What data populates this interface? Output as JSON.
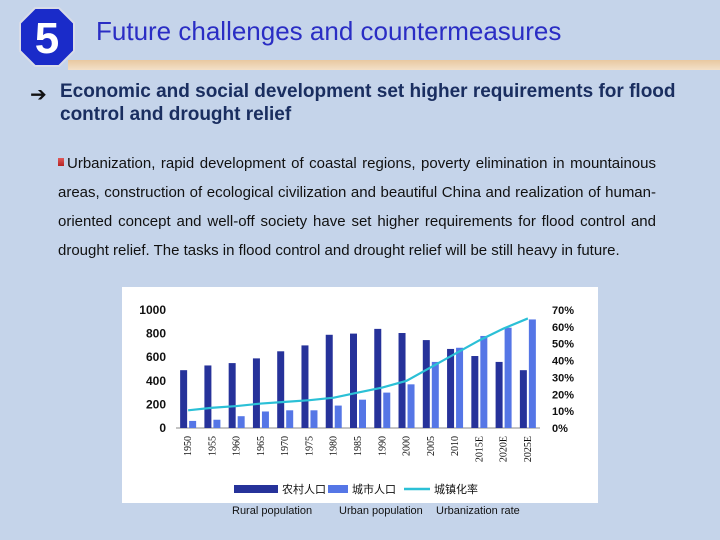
{
  "badge": {
    "number": "5"
  },
  "title": "Future challenges and countermeasures",
  "heading": "Economic and social development set higher requirements for flood control and drought relief",
  "paragraph": "Urbanization, rapid development of coastal regions, poverty elimination in mountainous areas, construction of ecological civilization and beautiful China and realization of human-oriented concept and well-off society have set higher requirements for flood control and drought relief. The tasks in flood control and drought relief will be still heavy in future.",
  "colors": {
    "rural": "#26329a",
    "urban": "#5576e6",
    "rate": "#2bc0d6",
    "title": "#2a2dc4",
    "badge": "#1a2bc9"
  },
  "below_labels": {
    "rural": "Rural population",
    "urban": "Urban population",
    "rate": "Urbanization rate"
  },
  "chart_data": {
    "type": "bar",
    "categories": [
      "1950",
      "1955",
      "1960",
      "1965",
      "1970",
      "1975",
      "1980",
      "1985",
      "1990",
      "2000",
      "2005",
      "2010",
      "2015E",
      "2020E",
      "2025E"
    ],
    "series": [
      {
        "name": "农村人口",
        "type": "bar",
        "axis": "left",
        "values": [
          490,
          530,
          550,
          590,
          650,
          700,
          790,
          800,
          840,
          805,
          745,
          670,
          610,
          560,
          490
        ]
      },
      {
        "name": "城市人口",
        "type": "bar",
        "axis": "left",
        "values": [
          60,
          70,
          100,
          140,
          150,
          150,
          190,
          240,
          300,
          370,
          560,
          680,
          780,
          850,
          920
        ]
      },
      {
        "name": "城镇化率",
        "type": "line",
        "axis": "right",
        "values": [
          10.5,
          12,
          13,
          14.5,
          15.5,
          16.5,
          18,
          21,
          24,
          28,
          36,
          44,
          52,
          59,
          65
        ]
      }
    ],
    "yticks_left": [
      "0",
      "200",
      "400",
      "600",
      "800",
      "1000"
    ],
    "yticks_right": [
      "0%",
      "10%",
      "20%",
      "30%",
      "40%",
      "50%",
      "60%",
      "70%"
    ],
    "ylim_left": [
      0,
      1000
    ],
    "ylim_right": [
      0,
      70
    ]
  }
}
